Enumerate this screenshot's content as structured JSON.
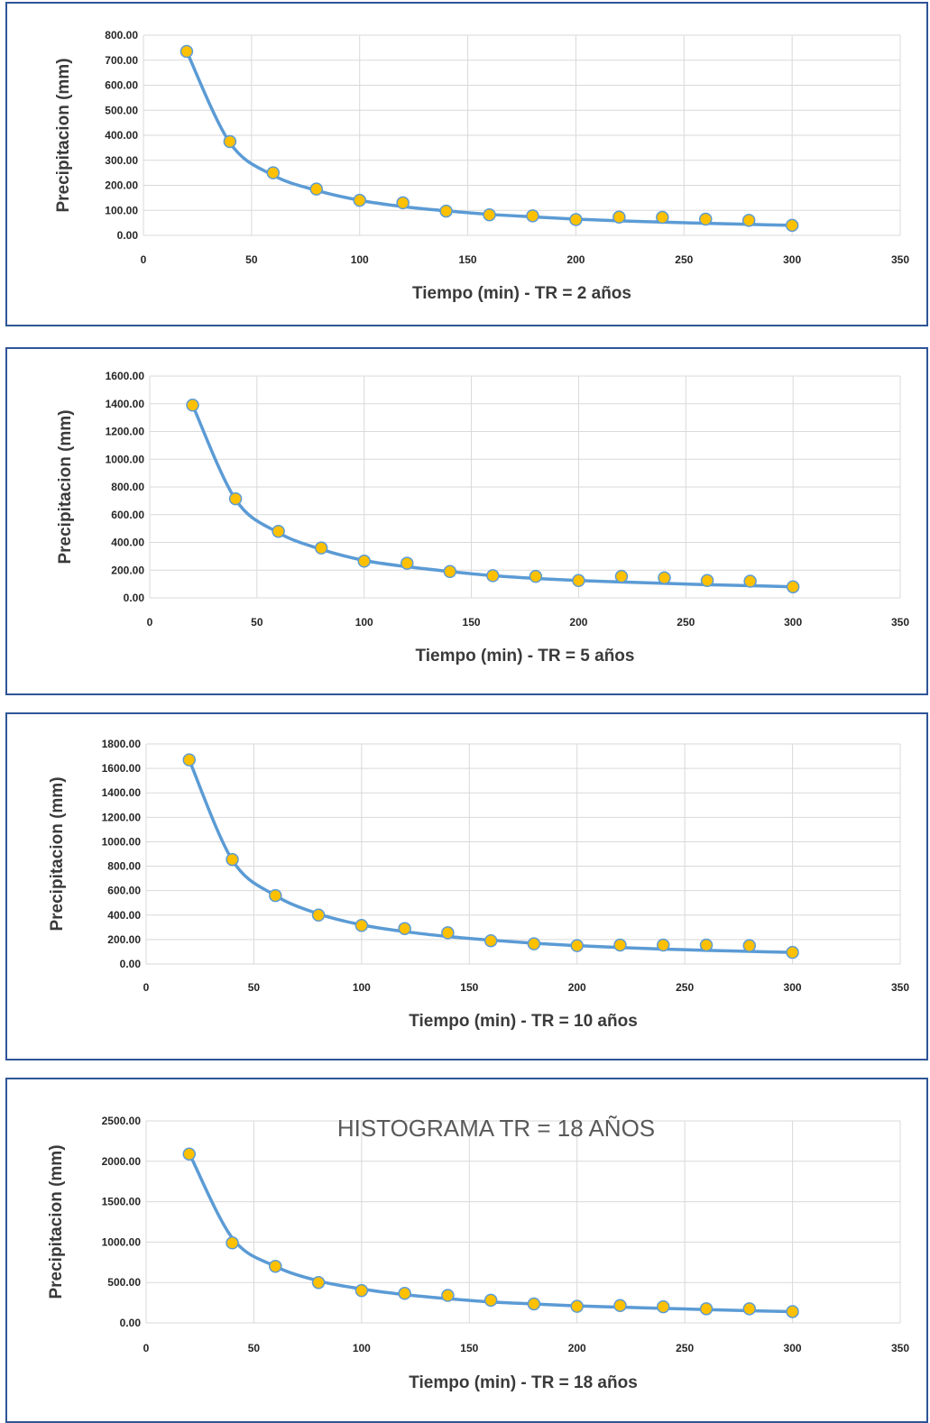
{
  "colors": {
    "line": "#5b9bd5",
    "marker": "#ffc000",
    "grid": "#d9d9d9",
    "border": "#2f5597"
  },
  "chart_data": [
    {
      "type": "scatter",
      "title": "",
      "xlabel": "Tiempo (min) - TR = 2 años",
      "ylabel": "Precipitacion (mm)",
      "xlim": [
        0,
        350
      ],
      "ylim": [
        0,
        800
      ],
      "x_ticks": [
        "0",
        "50",
        "100",
        "150",
        "200",
        "250",
        "300",
        "350"
      ],
      "y_ticks": [
        "0.00",
        "100.00",
        "200.00",
        "300.00",
        "400.00",
        "500.00",
        "600.00",
        "700.00",
        "800.00"
      ],
      "grid": true,
      "legend": "none",
      "series": [
        {
          "points": [
            [
              20,
              735
            ],
            [
              40,
              375
            ],
            [
              60,
              250
            ],
            [
              80,
              185
            ],
            [
              100,
              140
            ],
            [
              120,
              130
            ],
            [
              140,
              97
            ],
            [
              160,
              82
            ],
            [
              180,
              78
            ],
            [
              200,
              63
            ],
            [
              220,
              73
            ],
            [
              240,
              72
            ],
            [
              260,
              65
            ],
            [
              280,
              60
            ],
            [
              300,
              40
            ]
          ]
        },
        {
          "line": [
            [
              20,
              735
            ],
            [
              40,
              370
            ],
            [
              60,
              240
            ],
            [
              80,
              180
            ],
            [
              100,
              140
            ],
            [
              120,
              115
            ],
            [
              140,
              98
            ],
            [
              160,
              84
            ],
            [
              180,
              74
            ],
            [
              200,
              65
            ],
            [
              220,
              58
            ],
            [
              240,
              53
            ],
            [
              260,
              48
            ],
            [
              280,
              44
            ],
            [
              300,
              40
            ]
          ]
        }
      ]
    },
    {
      "type": "scatter",
      "title": "",
      "xlabel": "Tiempo (min) - TR = 5 años",
      "ylabel": "Precipitacion (mm)",
      "xlim": [
        0,
        350
      ],
      "ylim": [
        0,
        1600
      ],
      "x_ticks": [
        "0",
        "50",
        "100",
        "150",
        "200",
        "250",
        "300",
        "350"
      ],
      "y_ticks": [
        "0.00",
        "200.00",
        "400.00",
        "600.00",
        "800.00",
        "1000.00",
        "1200.00",
        "1400.00",
        "1600.00"
      ],
      "grid": true,
      "legend": "none",
      "series": [
        {
          "points": [
            [
              20,
              1390
            ],
            [
              40,
              715
            ],
            [
              60,
              480
            ],
            [
              80,
              360
            ],
            [
              100,
              265
            ],
            [
              120,
              250
            ],
            [
              140,
              190
            ],
            [
              160,
              160
            ],
            [
              180,
              155
            ],
            [
              200,
              125
            ],
            [
              220,
              155
            ],
            [
              240,
              145
            ],
            [
              260,
              125
            ],
            [
              280,
              120
            ],
            [
              300,
              80
            ]
          ]
        },
        {
          "line": [
            [
              20,
              1390
            ],
            [
              40,
              710
            ],
            [
              60,
              470
            ],
            [
              80,
              350
            ],
            [
              100,
              270
            ],
            [
              120,
              225
            ],
            [
              140,
              190
            ],
            [
              160,
              160
            ],
            [
              180,
              140
            ],
            [
              200,
              125
            ],
            [
              220,
              115
            ],
            [
              240,
              105
            ],
            [
              260,
              95
            ],
            [
              280,
              88
            ],
            [
              300,
              80
            ]
          ]
        }
      ]
    },
    {
      "type": "scatter",
      "title": "",
      "xlabel": "Tiempo (min) - TR = 10 años",
      "ylabel": "Precipitacion (mm)",
      "xlim": [
        0,
        350
      ],
      "ylim": [
        0,
        1800
      ],
      "x_ticks": [
        "0",
        "50",
        "100",
        "150",
        "200",
        "250",
        "300",
        "350"
      ],
      "y_ticks": [
        "0.00",
        "200.00",
        "400.00",
        "600.00",
        "800.00",
        "1000.00",
        "1200.00",
        "1400.00",
        "1600.00",
        "1800.00"
      ],
      "grid": true,
      "legend": "none",
      "series": [
        {
          "points": [
            [
              20,
              1670
            ],
            [
              40,
              855
            ],
            [
              60,
              560
            ],
            [
              80,
              400
            ],
            [
              100,
              315
            ],
            [
              120,
              290
            ],
            [
              140,
              255
            ],
            [
              160,
              190
            ],
            [
              180,
              165
            ],
            [
              200,
              150
            ],
            [
              220,
              155
            ],
            [
              240,
              155
            ],
            [
              260,
              155
            ],
            [
              280,
              150
            ],
            [
              300,
              95
            ]
          ]
        },
        {
          "line": [
            [
              20,
              1670
            ],
            [
              40,
              850
            ],
            [
              60,
              560
            ],
            [
              80,
              410
            ],
            [
              100,
              320
            ],
            [
              120,
              265
            ],
            [
              140,
              225
            ],
            [
              160,
              195
            ],
            [
              180,
              170
            ],
            [
              200,
              150
            ],
            [
              220,
              135
            ],
            [
              240,
              122
            ],
            [
              260,
              112
            ],
            [
              280,
              103
            ],
            [
              300,
              95
            ]
          ]
        }
      ]
    },
    {
      "type": "scatter",
      "title": "HISTOGRAMA TR = 18 AÑOS",
      "xlabel": "Tiempo (min) - TR = 18 años",
      "ylabel": "Precipitacion (mm)",
      "xlim": [
        0,
        350
      ],
      "ylim": [
        0,
        2500
      ],
      "x_ticks": [
        "0",
        "50",
        "100",
        "150",
        "200",
        "250",
        "300",
        "350"
      ],
      "y_ticks": [
        "0.00",
        "500.00",
        "1000.00",
        "1500.00",
        "2000.00",
        "2500.00"
      ],
      "grid": true,
      "legend": "none",
      "series": [
        {
          "points": [
            [
              20,
              2090
            ],
            [
              40,
              990
            ],
            [
              60,
              700
            ],
            [
              80,
              500
            ],
            [
              100,
              400
            ],
            [
              120,
              365
            ],
            [
              140,
              340
            ],
            [
              160,
              280
            ],
            [
              180,
              235
            ],
            [
              200,
              205
            ],
            [
              220,
              215
            ],
            [
              240,
              200
            ],
            [
              260,
              175
            ],
            [
              280,
              175
            ],
            [
              300,
              140
            ]
          ]
        },
        {
          "line": [
            [
              20,
              2100
            ],
            [
              40,
              1050
            ],
            [
              60,
              700
            ],
            [
              80,
              520
            ],
            [
              100,
              420
            ],
            [
              120,
              350
            ],
            [
              140,
              300
            ],
            [
              160,
              260
            ],
            [
              180,
              235
            ],
            [
              200,
              210
            ],
            [
              220,
              195
            ],
            [
              240,
              180
            ],
            [
              260,
              165
            ],
            [
              280,
              150
            ],
            [
              300,
              140
            ]
          ]
        }
      ]
    }
  ]
}
